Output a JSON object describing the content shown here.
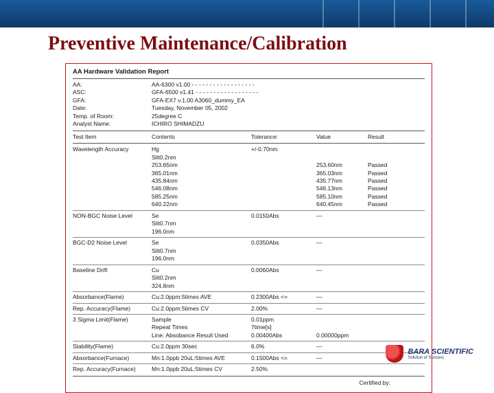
{
  "slide": {
    "title": "Preventive Maintenance/Calibration",
    "title_color": "#7a0f12",
    "frame_border": "#c51118"
  },
  "report": {
    "heading": "AA Hardware Validation Report",
    "header_rows": [
      {
        "label": "AA:",
        "value": "AA-6300 v1.00  - - - - - - - - - - - - - - - - - -"
      },
      {
        "label": "ASC:",
        "value": "GFA-6500 v1.41 - - - - - - - - - - - - - - - - - -"
      },
      {
        "label": "GFA:",
        "value": "GFA-EX7 v.1.00 A3060_dummy_EA"
      },
      {
        "label": "Date:",
        "value": "Tuesday, November 05, 2002"
      },
      {
        "label": "Temp. of Room:",
        "value": "25degree C"
      },
      {
        "label": "Analyst Name:",
        "value": "ICHIRO SHIMADZU"
      }
    ],
    "columns": [
      "Test Item",
      "Contents",
      "Tolerance:",
      "Value",
      "Result"
    ],
    "sections": [
      {
        "item": "Wavelength Accuracy",
        "rows": [
          {
            "contents": "Hg",
            "tol": "+/-0.70nm",
            "val": "",
            "res": ""
          },
          {
            "contents": "Slit0.2nm",
            "tol": "",
            "val": "",
            "res": ""
          },
          {
            "contents": "253.65nm",
            "tol": "",
            "val": "253.60nm",
            "res": "Passed"
          },
          {
            "contents": "365.01nm",
            "tol": "",
            "val": "365.03nm",
            "res": "Passed"
          },
          {
            "contents": "435.84nm",
            "tol": "",
            "val": "435.77nm",
            "res": "Passed"
          },
          {
            "contents": "546.08nm",
            "tol": "",
            "val": "546.13nm",
            "res": "Passed"
          },
          {
            "contents": "585.25nm",
            "tol": "",
            "val": "585.10nm",
            "res": "Passed"
          },
          {
            "contents": "640.22nm",
            "tol": "",
            "val": "640.45nm",
            "res": "Passed"
          }
        ]
      },
      {
        "item": "NON-BGC Noise Level",
        "rows": [
          {
            "contents": "Se",
            "tol": "0.0150Abs",
            "val": "—",
            "res": ""
          },
          {
            "contents": "Slit0.7nm",
            "tol": "",
            "val": "",
            "res": ""
          },
          {
            "contents": "196.0nm",
            "tol": "",
            "val": "",
            "res": ""
          }
        ]
      },
      {
        "item": "BGC-D2 Noise Level",
        "rows": [
          {
            "contents": "Se",
            "tol": "0.0350Abs",
            "val": "—",
            "res": ""
          },
          {
            "contents": "Slit0.7nm",
            "tol": "",
            "val": "",
            "res": ""
          },
          {
            "contents": "196.0nm",
            "tol": "",
            "val": "",
            "res": ""
          }
        ]
      },
      {
        "item": "Baseline Drift",
        "rows": [
          {
            "contents": "Cu",
            "tol": "0.0060Abs",
            "val": "—",
            "res": ""
          },
          {
            "contents": "Slit0.2nm",
            "tol": "",
            "val": "",
            "res": ""
          },
          {
            "contents": "324.8nm",
            "tol": "",
            "val": "",
            "res": ""
          }
        ]
      },
      {
        "item": "Absorbance(Flame)",
        "rows": [
          {
            "contents": "Cu:2.0ppm:5times AVE",
            "tol": "0.2300Abs <=",
            "val": "—",
            "res": ""
          }
        ]
      },
      {
        "item": "Rep. Accuracy(Flame)",
        "rows": [
          {
            "contents": "Cu:2.0ppm:5times CV",
            "tol": "2.00%",
            "val": "—",
            "res": ""
          }
        ]
      },
      {
        "item": "3 Sigma Limit(Flame)",
        "rows": [
          {
            "contents": "Sample",
            "tol": "0.01ppm",
            "val": "",
            "res": ""
          },
          {
            "contents": "Repeat Times",
            "tol": "7time[s]",
            "val": "",
            "res": ""
          },
          {
            "contents": "Line: Absobance Result Used",
            "tol": "0.00400Abs",
            "val": "0.00000ppm",
            "res": ""
          }
        ]
      },
      {
        "item": "Stability(Flame)",
        "rows": [
          {
            "contents": "Cu:2.0ppm 30sec",
            "tol": "6.0%",
            "val": "—",
            "res": ""
          }
        ]
      },
      {
        "item": "Absorbance(Furnace)",
        "rows": [
          {
            "contents": "Mn:1.0ppb 20uL:5times AVE",
            "tol": "0.1500Abs <=",
            "val": "—",
            "res": ""
          }
        ]
      },
      {
        "item": "Rep. Accuracy(Furnace)",
        "rows": [
          {
            "contents": "Mn:1.0ppb 20uL:5times CV",
            "tol": "2.50%",
            "val": "",
            "res": ""
          }
        ]
      }
    ],
    "certified_by": "Certified by:"
  },
  "logo": {
    "name": "BARA SCIENTIFIC",
    "tagline": "Solution of Success"
  }
}
